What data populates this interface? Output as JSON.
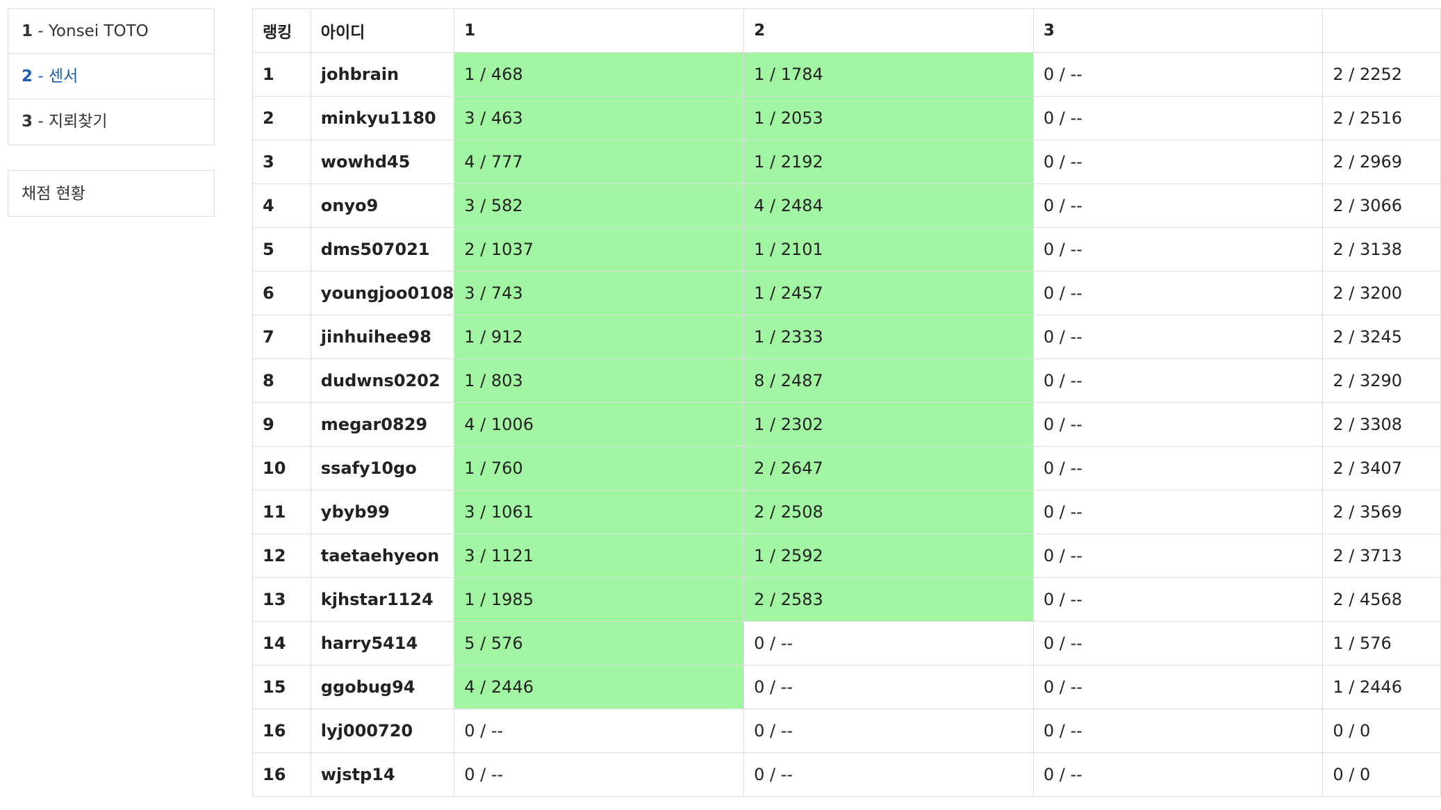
{
  "sidebar": {
    "problems": [
      {
        "num": "1",
        "sep": " - ",
        "title": "Yonsei TOTO",
        "active": false
      },
      {
        "num": "2",
        "sep": " - ",
        "title": "센서",
        "active": true
      },
      {
        "num": "3",
        "sep": " - ",
        "title": "지뢰찾기",
        "active": false
      }
    ],
    "status_label": "채점 현황"
  },
  "table": {
    "headers": [
      "랭킹",
      "아이디",
      "1",
      "2",
      "3",
      ""
    ],
    "rows": [
      {
        "rank": "1",
        "id": "johbrain",
        "p1": "1 / 468",
        "p2": "1 / 1784",
        "p3": "0 / --",
        "total": "2 / 2252",
        "solved": [
          true,
          true,
          false
        ]
      },
      {
        "rank": "2",
        "id": "minkyu1180",
        "p1": "3 / 463",
        "p2": "1 / 2053",
        "p3": "0 / --",
        "total": "2 / 2516",
        "solved": [
          true,
          true,
          false
        ]
      },
      {
        "rank": "3",
        "id": "wowhd45",
        "p1": "4 / 777",
        "p2": "1 / 2192",
        "p3": "0 / --",
        "total": "2 / 2969",
        "solved": [
          true,
          true,
          false
        ]
      },
      {
        "rank": "4",
        "id": "onyo9",
        "p1": "3 / 582",
        "p2": "4 / 2484",
        "p3": "0 / --",
        "total": "2 / 3066",
        "solved": [
          true,
          true,
          false
        ]
      },
      {
        "rank": "5",
        "id": "dms507021",
        "p1": "2 / 1037",
        "p2": "1 / 2101",
        "p3": "0 / --",
        "total": "2 / 3138",
        "solved": [
          true,
          true,
          false
        ]
      },
      {
        "rank": "6",
        "id": "youngjoo0108",
        "p1": "3 / 743",
        "p2": "1 / 2457",
        "p3": "0 / --",
        "total": "2 / 3200",
        "solved": [
          true,
          true,
          false
        ]
      },
      {
        "rank": "7",
        "id": "jinhuihee98",
        "p1": "1 / 912",
        "p2": "1 / 2333",
        "p3": "0 / --",
        "total": "2 / 3245",
        "solved": [
          true,
          true,
          false
        ]
      },
      {
        "rank": "8",
        "id": "dudwns0202",
        "p1": "1 / 803",
        "p2": "8 / 2487",
        "p3": "0 / --",
        "total": "2 / 3290",
        "solved": [
          true,
          true,
          false
        ]
      },
      {
        "rank": "9",
        "id": "megar0829",
        "p1": "4 / 1006",
        "p2": "1 / 2302",
        "p3": "0 / --",
        "total": "2 / 3308",
        "solved": [
          true,
          true,
          false
        ]
      },
      {
        "rank": "10",
        "id": "ssafy10go",
        "p1": "1 / 760",
        "p2": "2 / 2647",
        "p3": "0 / --",
        "total": "2 / 3407",
        "solved": [
          true,
          true,
          false
        ]
      },
      {
        "rank": "11",
        "id": "ybyb99",
        "p1": "3 / 1061",
        "p2": "2 / 2508",
        "p3": "0 / --",
        "total": "2 / 3569",
        "solved": [
          true,
          true,
          false
        ]
      },
      {
        "rank": "12",
        "id": "taetaehyeon",
        "p1": "3 / 1121",
        "p2": "1 / 2592",
        "p3": "0 / --",
        "total": "2 / 3713",
        "solved": [
          true,
          true,
          false
        ]
      },
      {
        "rank": "13",
        "id": "kjhstar1124",
        "p1": "1 / 1985",
        "p2": "2 / 2583",
        "p3": "0 / --",
        "total": "2 / 4568",
        "solved": [
          true,
          true,
          false
        ]
      },
      {
        "rank": "14",
        "id": "harry5414",
        "p1": "5 / 576",
        "p2": "0 / --",
        "p3": "0 / --",
        "total": "1 / 576",
        "solved": [
          true,
          false,
          false
        ]
      },
      {
        "rank": "15",
        "id": "ggobug94",
        "p1": "4 / 2446",
        "p2": "0 / --",
        "p3": "0 / --",
        "total": "1 / 2446",
        "solved": [
          true,
          false,
          false
        ]
      },
      {
        "rank": "16",
        "id": "lyj000720",
        "p1": "0 / --",
        "p2": "0 / --",
        "p3": "0 / --",
        "total": "0 / 0",
        "solved": [
          false,
          false,
          false
        ]
      },
      {
        "rank": "16",
        "id": "wjstp14",
        "p1": "0 / --",
        "p2": "0 / --",
        "p3": "0 / --",
        "total": "0 / 0",
        "solved": [
          false,
          false,
          false
        ]
      }
    ]
  },
  "colors": {
    "solved_bg": "#a2f5a2",
    "active_link": "#1a5fb4",
    "border": "#dddddd"
  }
}
